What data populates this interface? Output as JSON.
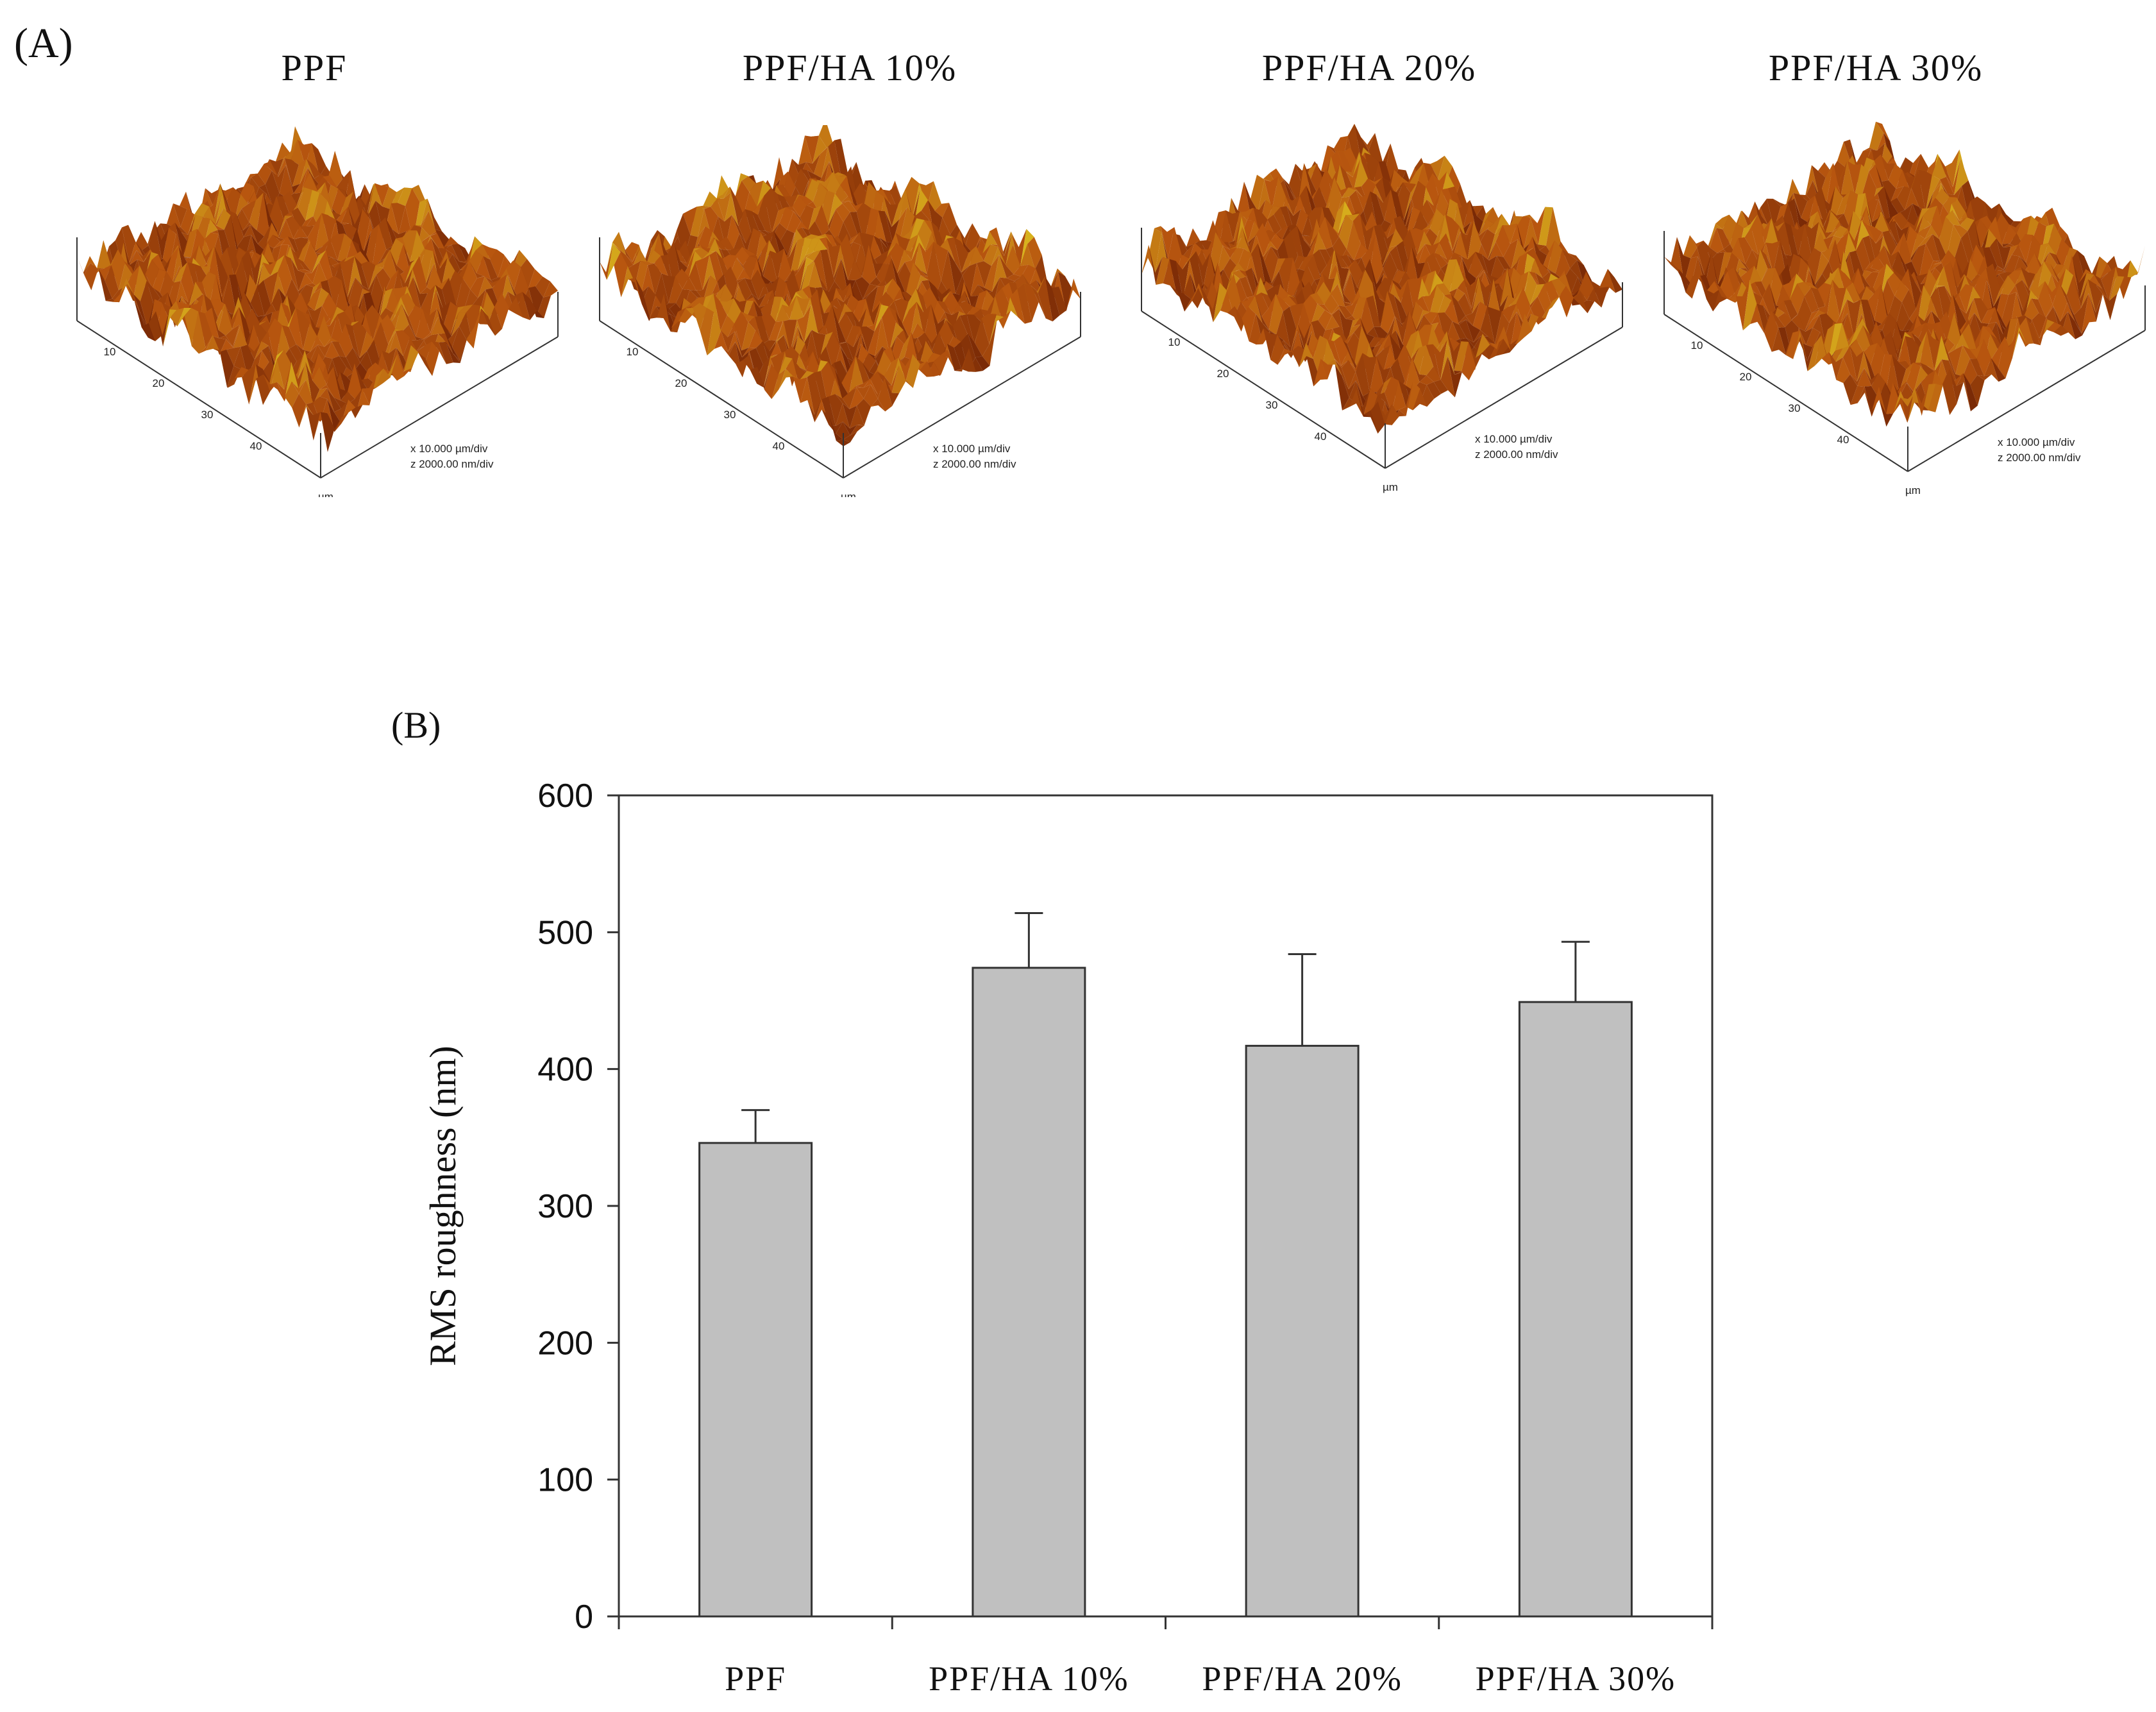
{
  "panel_a": {
    "label": "(A)",
    "images": [
      {
        "title": "PPF",
        "axis_ticks": [
          "10",
          "20",
          "30",
          "40"
        ],
        "unit": "µm",
        "scale_x": "x   10.000 µm/div",
        "scale_z": "z   2000.00 nm/div"
      },
      {
        "title": "PPF/HA 10%",
        "axis_ticks": [
          "10",
          "20",
          "30",
          "40"
        ],
        "unit": "µm",
        "scale_x": "x   10.000 µm/div",
        "scale_z": "z   2000.00 nm/div"
      },
      {
        "title": "PPF/HA 20%",
        "axis_ticks": [
          "10",
          "20",
          "30",
          "40"
        ],
        "unit": "µm",
        "scale_x": "x   10.000 µm/div",
        "scale_z": "z   2000.00 nm/div"
      },
      {
        "title": "PPF/HA 30%",
        "axis_ticks": [
          "10",
          "20",
          "30",
          "40"
        ],
        "unit": "µm",
        "scale_x": "x   10.000 µm/div",
        "scale_z": "z   2000.00 nm/div"
      }
    ],
    "colors": {
      "dark": "#7a2a06",
      "mid": "#b8560f",
      "light": "#d8b21d"
    }
  },
  "panel_b": {
    "label": "(B)"
  },
  "chart_data": {
    "type": "bar",
    "title": "",
    "xlabel": "",
    "ylabel": "RMS roughness (nm)",
    "categories": [
      "PPF",
      "PPF/HA 10%",
      "PPF/HA 20%",
      "PPF/HA 30%"
    ],
    "values": [
      346,
      474,
      417,
      449
    ],
    "error_upper": [
      24,
      40,
      67,
      44
    ],
    "ylim": [
      0,
      600
    ],
    "yticks": [
      "0",
      "100",
      "200",
      "300",
      "400",
      "500",
      "600"
    ],
    "grid": false,
    "bar_color": "#c0c0c0",
    "edge_color": "#333333"
  }
}
